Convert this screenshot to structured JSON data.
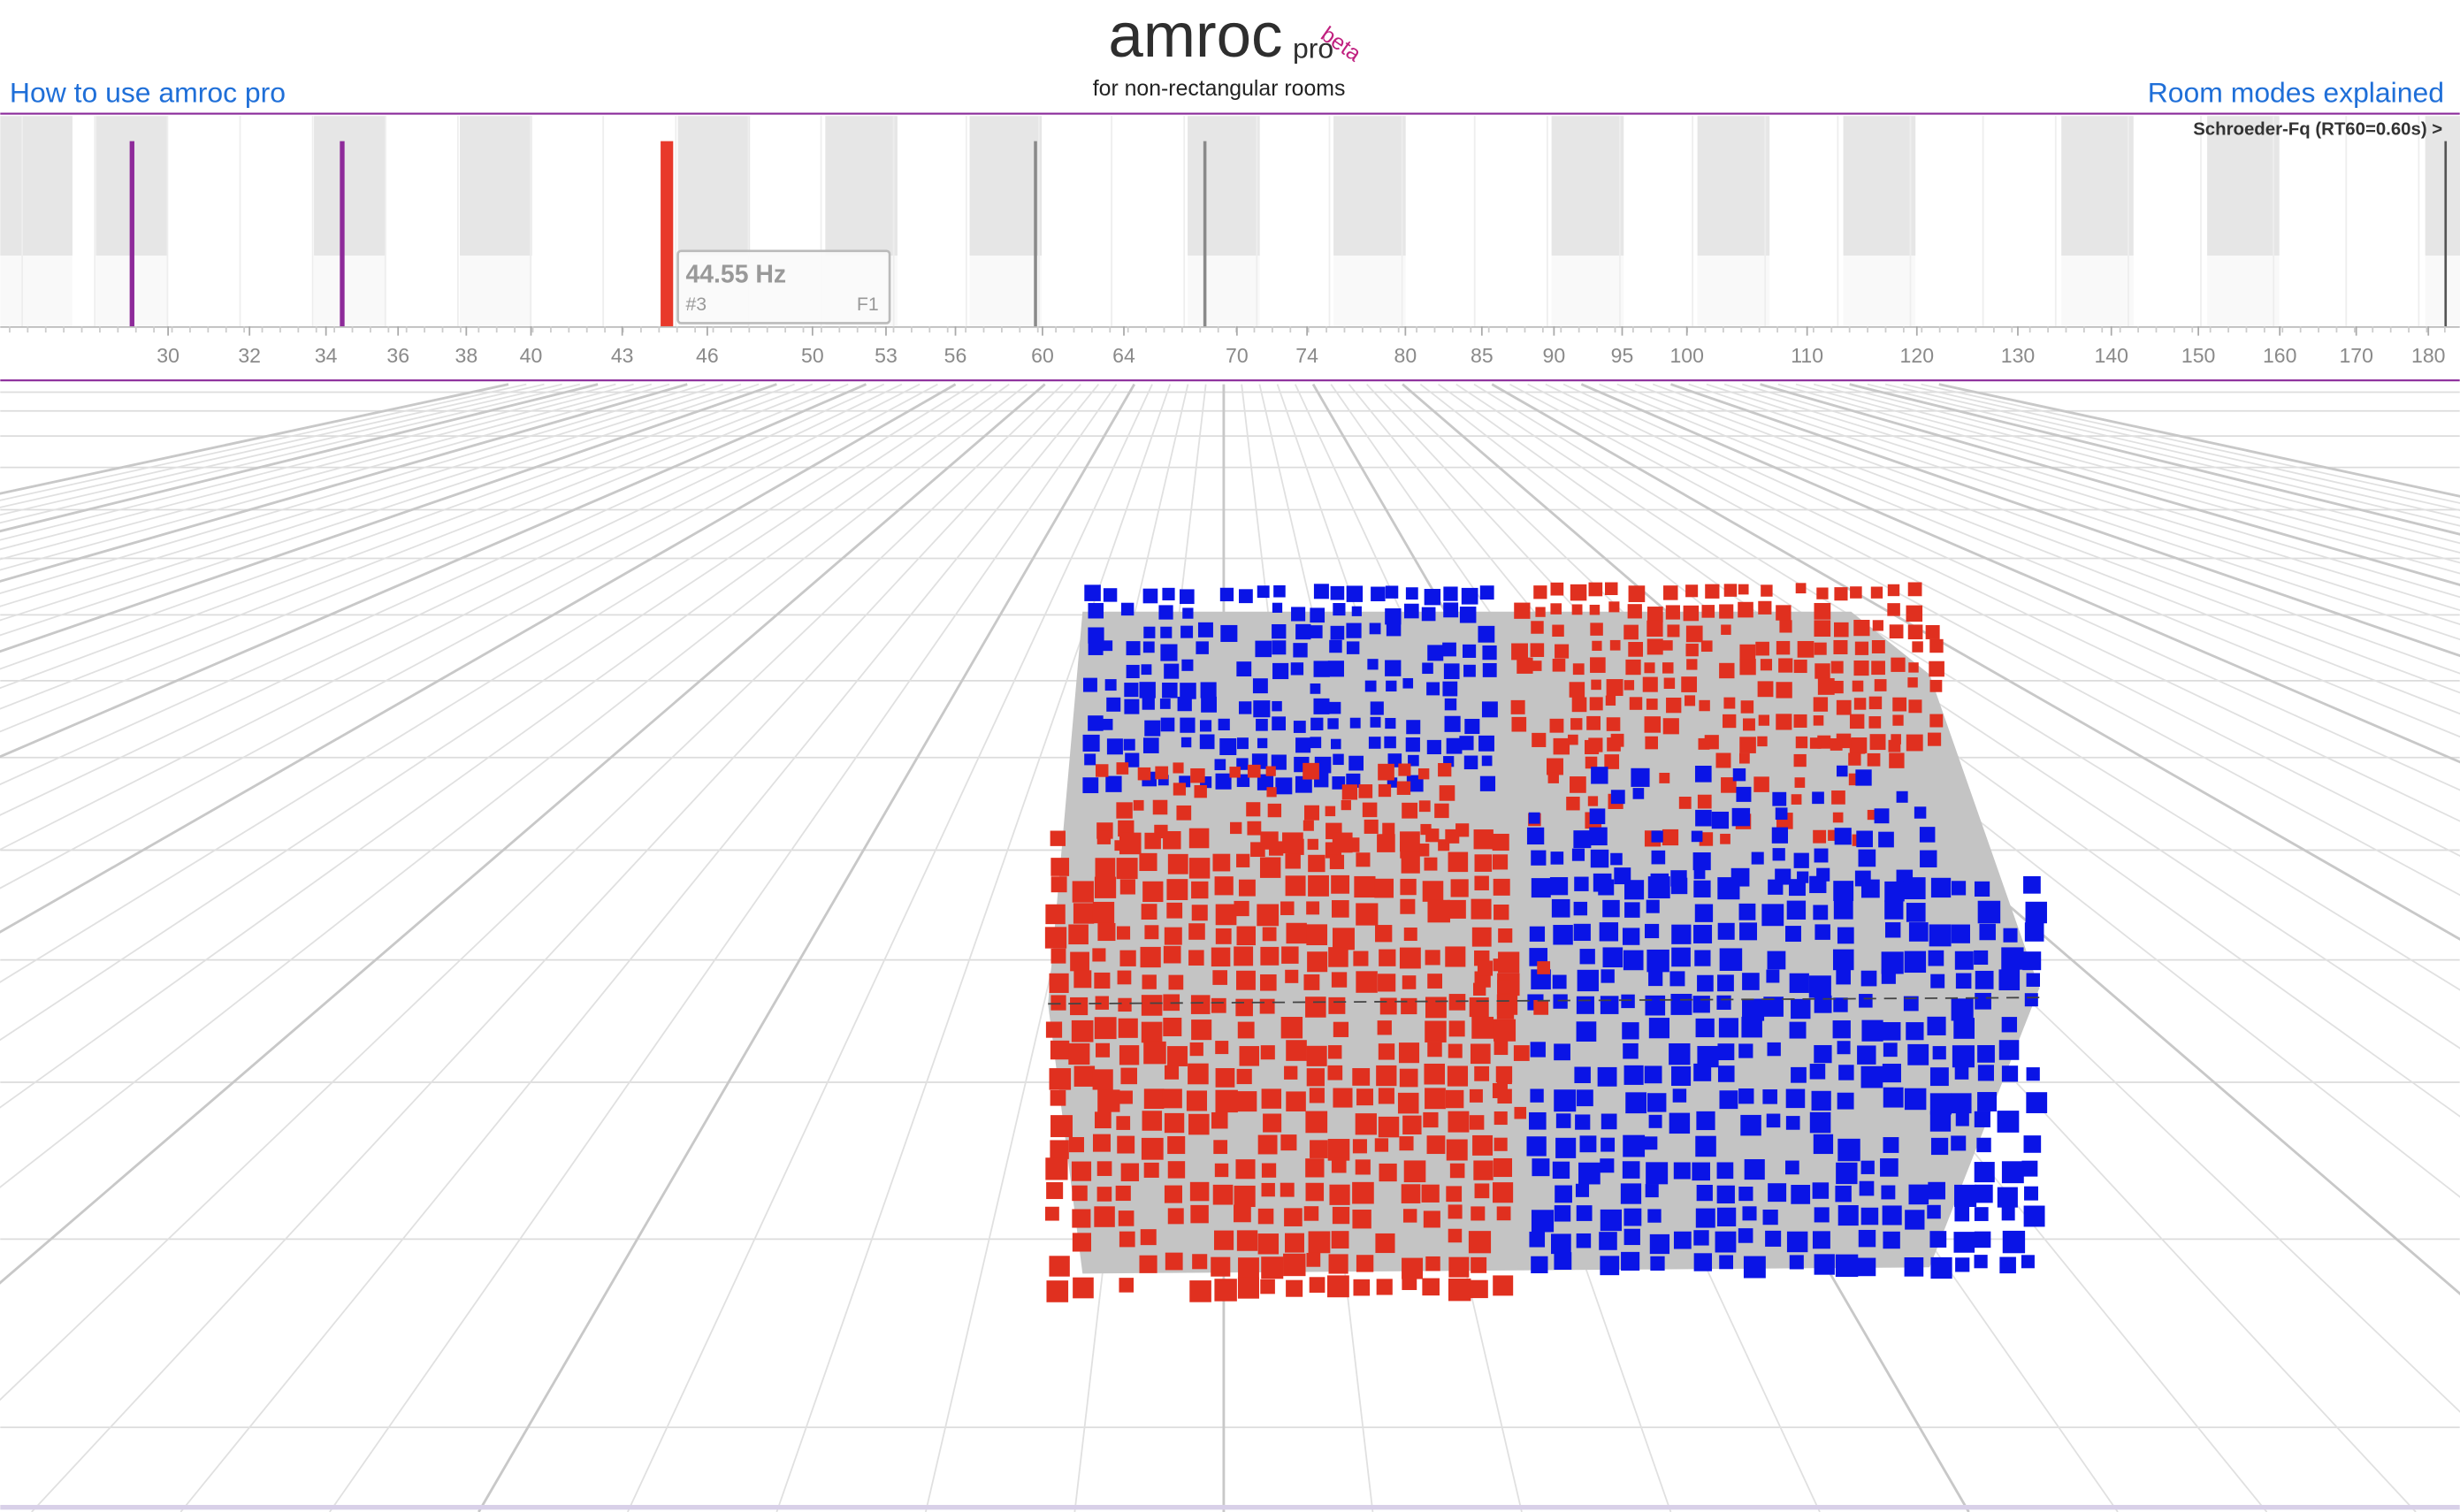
{
  "header": {
    "title": "amroc",
    "title_suffix": "pro",
    "badge": "beta",
    "subtitle": "for non-rectangular rooms"
  },
  "nav": {
    "left_link": "How to use amroc pro",
    "right_link": "Room modes explained"
  },
  "frequency_strip": {
    "schroeder_label": "Schroeder-Fq (RT60=0.60s) >",
    "tooltip": {
      "frequency": "44.55 Hz",
      "index": "#3",
      "label": "F1"
    },
    "axis_ticks": [
      30,
      32,
      34,
      36,
      38,
      40,
      43,
      46,
      50,
      53,
      56,
      60,
      64,
      70,
      74,
      80,
      85,
      90,
      95,
      100,
      110,
      120,
      130,
      140,
      150,
      160,
      170,
      180
    ]
  }
}
